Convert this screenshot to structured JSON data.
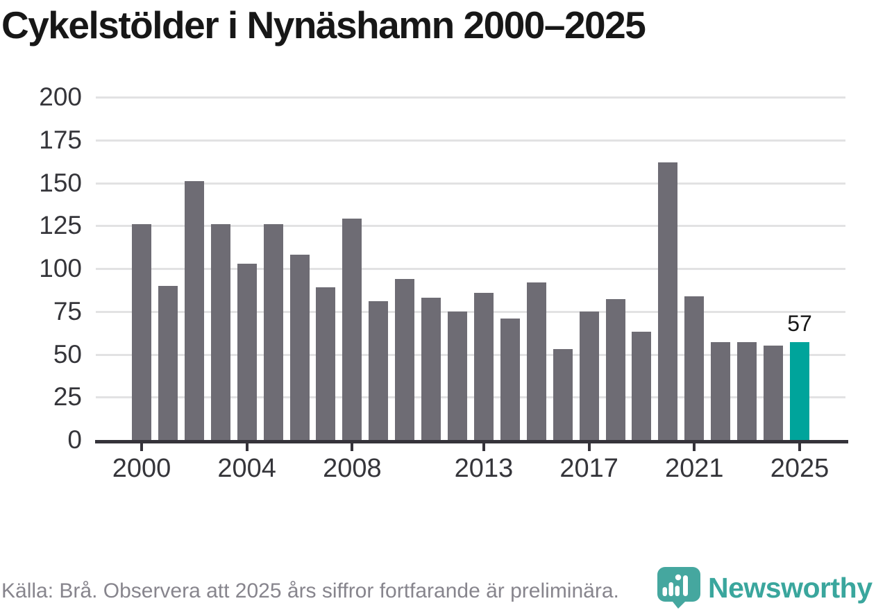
{
  "header": {
    "title": "Cykelstölder i Nynäshamn 2000–2025"
  },
  "chart_data": {
    "type": "bar",
    "title": "Cykelstölder i Nynäshamn 2000–2025",
    "x": [
      2000,
      2001,
      2002,
      2003,
      2004,
      2005,
      2006,
      2007,
      2008,
      2009,
      2010,
      2011,
      2012,
      2013,
      2014,
      2015,
      2016,
      2017,
      2018,
      2019,
      2020,
      2021,
      2022,
      2023,
      2024,
      2025
    ],
    "values": [
      126,
      90,
      151,
      126,
      103,
      126,
      108,
      89,
      129,
      81,
      94,
      83,
      75,
      86,
      71,
      92,
      53,
      75,
      82,
      63,
      162,
      84,
      57,
      57,
      55,
      57
    ],
    "xticks": [
      2000,
      2004,
      2008,
      2013,
      2017,
      2021,
      2025
    ],
    "yticks": [
      0,
      25,
      50,
      75,
      100,
      125,
      150,
      175,
      200
    ],
    "ylim": [
      0,
      200
    ],
    "grid": "horizontal",
    "legend": "none",
    "bar_color": "#6e6c74",
    "highlight_color": "#00a49b",
    "highlight_index": 25,
    "value_label": {
      "index": 25,
      "value": 57,
      "text": "57"
    },
    "axis_color": "#35333a",
    "gridline_color": "#e2e2e3"
  },
  "footer": {
    "source_text": "Källa: Brå. Observera att 2025 års siffror fortfarande är preliminära.",
    "brand": {
      "name": "Newsworthy",
      "icon": "newsworthy-pin-icon",
      "text_color": "#3aa69d",
      "pin_color": "#45a79f"
    }
  }
}
